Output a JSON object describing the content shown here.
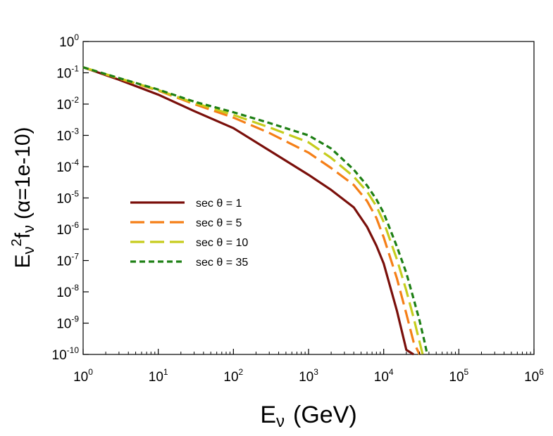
{
  "chart_data": {
    "type": "line",
    "xscale": "log",
    "yscale": "log",
    "xlim": [
      1,
      1000000
    ],
    "ylim": [
      1e-10,
      1
    ],
    "x_ticks": [
      {
        "base": "10",
        "exp": "0"
      },
      {
        "base": "10",
        "exp": "1"
      },
      {
        "base": "10",
        "exp": "2"
      },
      {
        "base": "10",
        "exp": "3"
      },
      {
        "base": "10",
        "exp": "4"
      },
      {
        "base": "10",
        "exp": "5"
      },
      {
        "base": "10",
        "exp": "6"
      }
    ],
    "y_ticks": [
      {
        "base": "10",
        "exp": "0"
      },
      {
        "base": "10",
        "exp": "-1"
      },
      {
        "base": "10",
        "exp": "-2"
      },
      {
        "base": "10",
        "exp": "-3"
      },
      {
        "base": "10",
        "exp": "-4"
      },
      {
        "base": "10",
        "exp": "-5"
      },
      {
        "base": "10",
        "exp": "-6"
      },
      {
        "base": "10",
        "exp": "-7"
      },
      {
        "base": "10",
        "exp": "-8"
      },
      {
        "base": "10",
        "exp": "-9"
      },
      {
        "base": "10",
        "exp": "-10"
      }
    ],
    "xlabel": {
      "main": "E",
      "sub": "ν",
      "unit": "(GeV)"
    },
    "ylabel": {
      "main": "E",
      "sub1": "ν",
      "sup": "2",
      "f": "f",
      "sub2": "ν",
      "rest": "(α=1e-10)"
    },
    "legend_position": "center-left",
    "series": [
      {
        "name": "sec θ = 1",
        "color": "#7a0f0a",
        "dash": "solid",
        "x": [
          1,
          3,
          10,
          30,
          100,
          300,
          1000,
          2000,
          4000,
          6000,
          8000,
          10000,
          15000,
          20000,
          25000
        ],
        "y": [
          0.15,
          0.06,
          0.02,
          0.006,
          0.0017,
          0.00033,
          5.5e-05,
          1.8e-05,
          5e-06,
          1.2e-06,
          3e-07,
          8e-08,
          2.5e-09,
          1.4e-10,
          1e-10
        ]
      },
      {
        "name": "sec θ = 5",
        "color": "#f57f17",
        "dash": "longdash",
        "x": [
          1,
          3,
          10,
          30,
          100,
          300,
          1000,
          2000,
          4000,
          6000,
          8000,
          10000,
          15000,
          20000,
          25000,
          30000
        ],
        "y": [
          0.15,
          0.065,
          0.027,
          0.01,
          0.0037,
          0.0012,
          0.00028,
          9e-05,
          2.6e-05,
          8e-06,
          2.3e-06,
          5.5e-07,
          2.7e-08,
          2e-09,
          2.5e-10,
          1e-10
        ]
      },
      {
        "name": "sec θ = 10",
        "color": "#c6cc1c",
        "dash": "longdash",
        "x": [
          1,
          3,
          10,
          30,
          100,
          300,
          1000,
          2000,
          4000,
          6000,
          8000,
          10000,
          15000,
          20000,
          25000,
          30000,
          33000
        ],
        "y": [
          0.15,
          0.067,
          0.028,
          0.011,
          0.0045,
          0.0018,
          0.0006,
          0.00019,
          4.8e-05,
          1.6e-05,
          5.5e-06,
          1.7e-06,
          1.1e-07,
          1.1e-08,
          1.5e-09,
          2.5e-10,
          1e-10
        ]
      },
      {
        "name": "sec θ = 35",
        "color": "#1d7f14",
        "dash": "shortdash",
        "x": [
          1,
          3,
          10,
          30,
          100,
          300,
          1000,
          2000,
          4000,
          6000,
          8000,
          10000,
          15000,
          20000,
          25000,
          30000,
          35000,
          38000
        ],
        "y": [
          0.15,
          0.068,
          0.029,
          0.012,
          0.0055,
          0.0025,
          0.001,
          0.00038,
          8e-05,
          2.5e-05,
          9e-06,
          3.3e-06,
          2.8e-07,
          4e-08,
          6e-09,
          1.2e-09,
          2.5e-10,
          1e-10
        ]
      }
    ]
  }
}
